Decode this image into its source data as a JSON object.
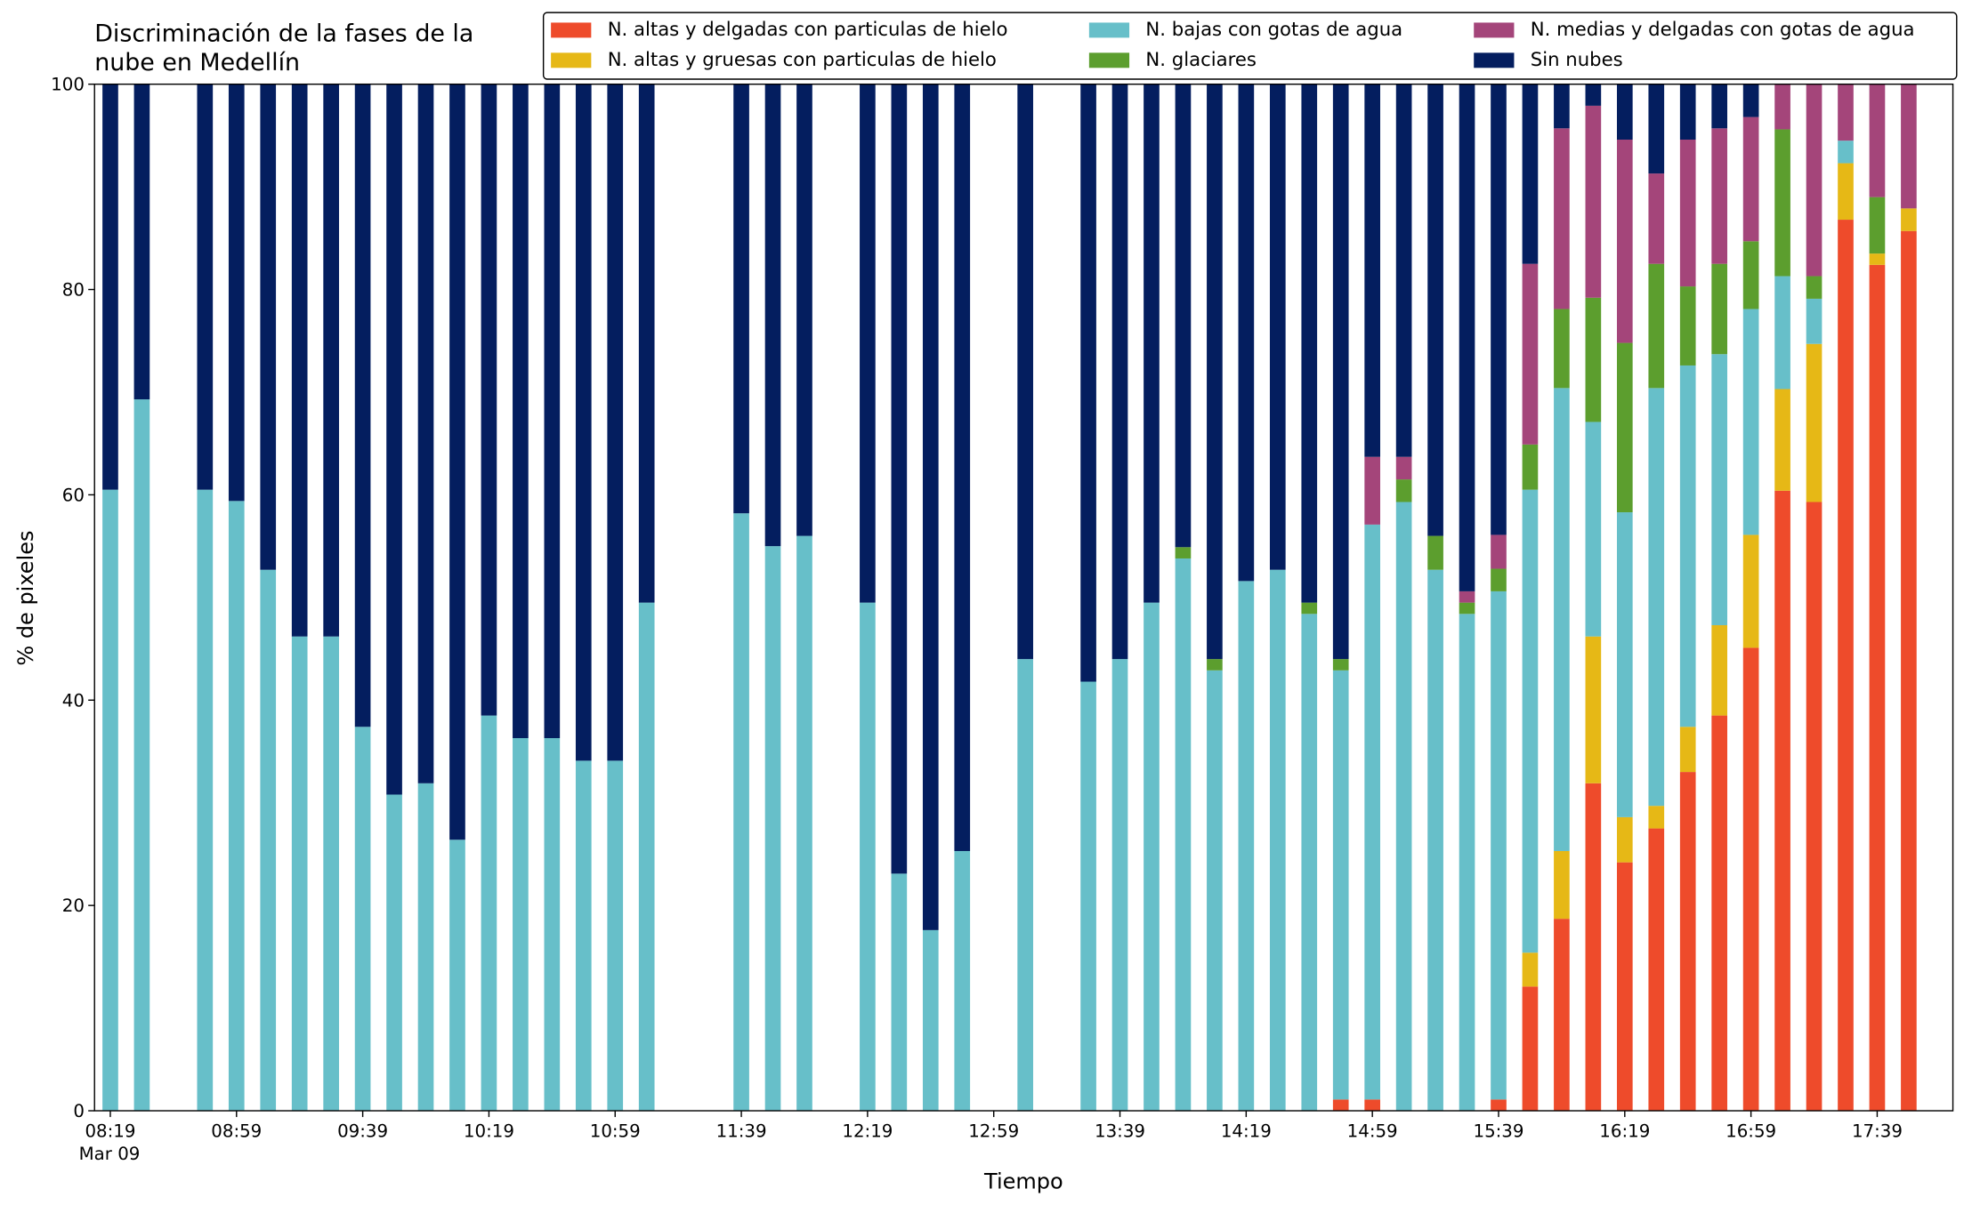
{
  "chart_data": {
    "type": "stacked_bar",
    "title": "Discriminación de la fases de la nube en Medellín",
    "xlabel": "Tiempo",
    "ylabel": "% de pixeles",
    "x": [
      "08:19",
      "08:29",
      "08:49",
      "08:59",
      "09:09",
      "09:19",
      "09:29",
      "09:39",
      "09:49",
      "09:59",
      "10:09",
      "10:19",
      "10:29",
      "10:39",
      "10:49",
      "10:59",
      "11:09",
      "11:39",
      "11:49",
      "11:59",
      "12:19",
      "12:29",
      "12:39",
      "12:49",
      "13:09",
      "13:29",
      "13:39",
      "13:49",
      "13:59",
      "14:09",
      "14:19",
      "14:29",
      "14:39",
      "14:49",
      "14:59",
      "15:09",
      "15:19",
      "15:29",
      "15:39",
      "15:49",
      "15:59",
      "16:09",
      "16:19",
      "16:29",
      "16:39",
      "16:49",
      "16:59",
      "17:09",
      "17:19",
      "17:29",
      "17:39",
      "17:49"
    ],
    "xlim": [
      "08:14",
      "18:03"
    ],
    "xticks": [
      "08:19",
      "08:59",
      "09:39",
      "10:19",
      "10:59",
      "11:39",
      "12:19",
      "12:59",
      "13:39",
      "14:19",
      "14:59",
      "15:39",
      "16:19",
      "16:59",
      "17:39"
    ],
    "xtick_date": "Mar 09",
    "ylim": [
      0,
      100
    ],
    "yticks": [
      0,
      20,
      40,
      60,
      80,
      100
    ],
    "legend": "top-right",
    "series": [
      {
        "name": "N. altas y delgadas con particulas de hielo",
        "color": "#ee4b2b",
        "values": [
          0,
          0,
          0,
          0,
          0,
          0,
          0,
          0,
          0,
          0,
          0,
          0,
          0,
          0,
          0,
          0,
          0,
          0,
          0,
          0,
          0,
          0,
          0,
          0,
          0,
          0,
          0,
          0,
          0,
          0,
          0,
          0,
          0,
          1.1,
          1.1,
          0,
          0,
          0,
          1.1,
          12.1,
          18.7,
          31.9,
          24.2,
          27.5,
          33.0,
          38.5,
          45.1,
          60.4,
          59.3,
          86.8,
          82.4,
          85.7
        ]
      },
      {
        "name": "N. altas y gruesas con particulas de hielo",
        "color": "#e6b816",
        "values": [
          0,
          0,
          0,
          0,
          0,
          0,
          0,
          0,
          0,
          0,
          0,
          0,
          0,
          0,
          0,
          0,
          0,
          0,
          0,
          0,
          0,
          0,
          0,
          0,
          0,
          0,
          0,
          0,
          0,
          0,
          0,
          0,
          0,
          0,
          0,
          0,
          0,
          0,
          0,
          3.3,
          6.6,
          14.3,
          4.4,
          2.2,
          4.4,
          8.8,
          11.0,
          9.9,
          15.4,
          5.5,
          1.1,
          2.2
        ]
      },
      {
        "name": "N. bajas con gotas de agua",
        "color": "#67bfc9",
        "values": [
          60.5,
          69.3,
          60.5,
          59.4,
          52.7,
          46.2,
          46.2,
          37.4,
          30.8,
          31.9,
          26.4,
          38.5,
          36.3,
          36.3,
          34.1,
          34.1,
          49.5,
          58.2,
          55.0,
          56.0,
          49.5,
          23.1,
          17.6,
          25.3,
          44.0,
          41.8,
          44.0,
          49.5,
          53.8,
          42.9,
          51.6,
          52.7,
          48.4,
          41.8,
          56.0,
          59.3,
          52.7,
          48.4,
          49.5,
          45.1,
          45.1,
          20.9,
          29.7,
          40.7,
          35.2,
          26.4,
          22.0,
          11.0,
          4.4,
          2.2,
          0,
          0
        ]
      },
      {
        "name": "N. glaciares",
        "color": "#5c9e2e",
        "values": [
          0,
          0,
          0,
          0,
          0,
          0,
          0,
          0,
          0,
          0,
          0,
          0,
          0,
          0,
          0,
          0,
          0,
          0,
          0,
          0,
          0,
          0,
          0,
          0,
          0,
          0,
          0,
          0,
          1.1,
          1.1,
          0,
          0,
          1.1,
          1.1,
          0,
          2.2,
          3.3,
          1.1,
          2.2,
          4.4,
          7.7,
          12.1,
          16.5,
          12.1,
          7.7,
          8.8,
          6.6,
          14.3,
          2.2,
          0,
          5.5,
          0
        ]
      },
      {
        "name": "N. medias y delgadas con gotas de agua",
        "color": "#a4457a",
        "values": [
          0,
          0,
          0,
          0,
          0,
          0,
          0,
          0,
          0,
          0,
          0,
          0,
          0,
          0,
          0,
          0,
          0,
          0,
          0,
          0,
          0,
          0,
          0,
          0,
          0,
          0,
          0,
          0,
          0,
          0,
          0,
          0,
          0,
          0,
          6.6,
          2.2,
          0,
          1.1,
          3.3,
          17.6,
          17.6,
          18.7,
          19.8,
          8.8,
          14.3,
          13.2,
          12.1,
          4.4,
          18.7,
          5.5,
          11.0,
          12.1
        ]
      },
      {
        "name": "Sin nubes",
        "color": "#041e5f",
        "values": [
          39.5,
          30.7,
          39.5,
          40.6,
          47.3,
          53.8,
          53.8,
          62.6,
          69.2,
          68.1,
          73.6,
          61.5,
          63.7,
          63.7,
          65.9,
          65.9,
          50.5,
          41.8,
          45.0,
          44.0,
          50.5,
          76.9,
          82.4,
          74.7,
          56.0,
          58.2,
          56.0,
          50.5,
          45.1,
          56.0,
          48.4,
          47.3,
          50.5,
          56.0,
          36.3,
          36.3,
          44.0,
          49.4,
          43.9,
          17.5,
          4.3,
          2.1,
          5.4,
          8.7,
          5.4,
          4.3,
          3.2,
          0,
          0,
          0,
          0,
          0
        ]
      }
    ]
  }
}
